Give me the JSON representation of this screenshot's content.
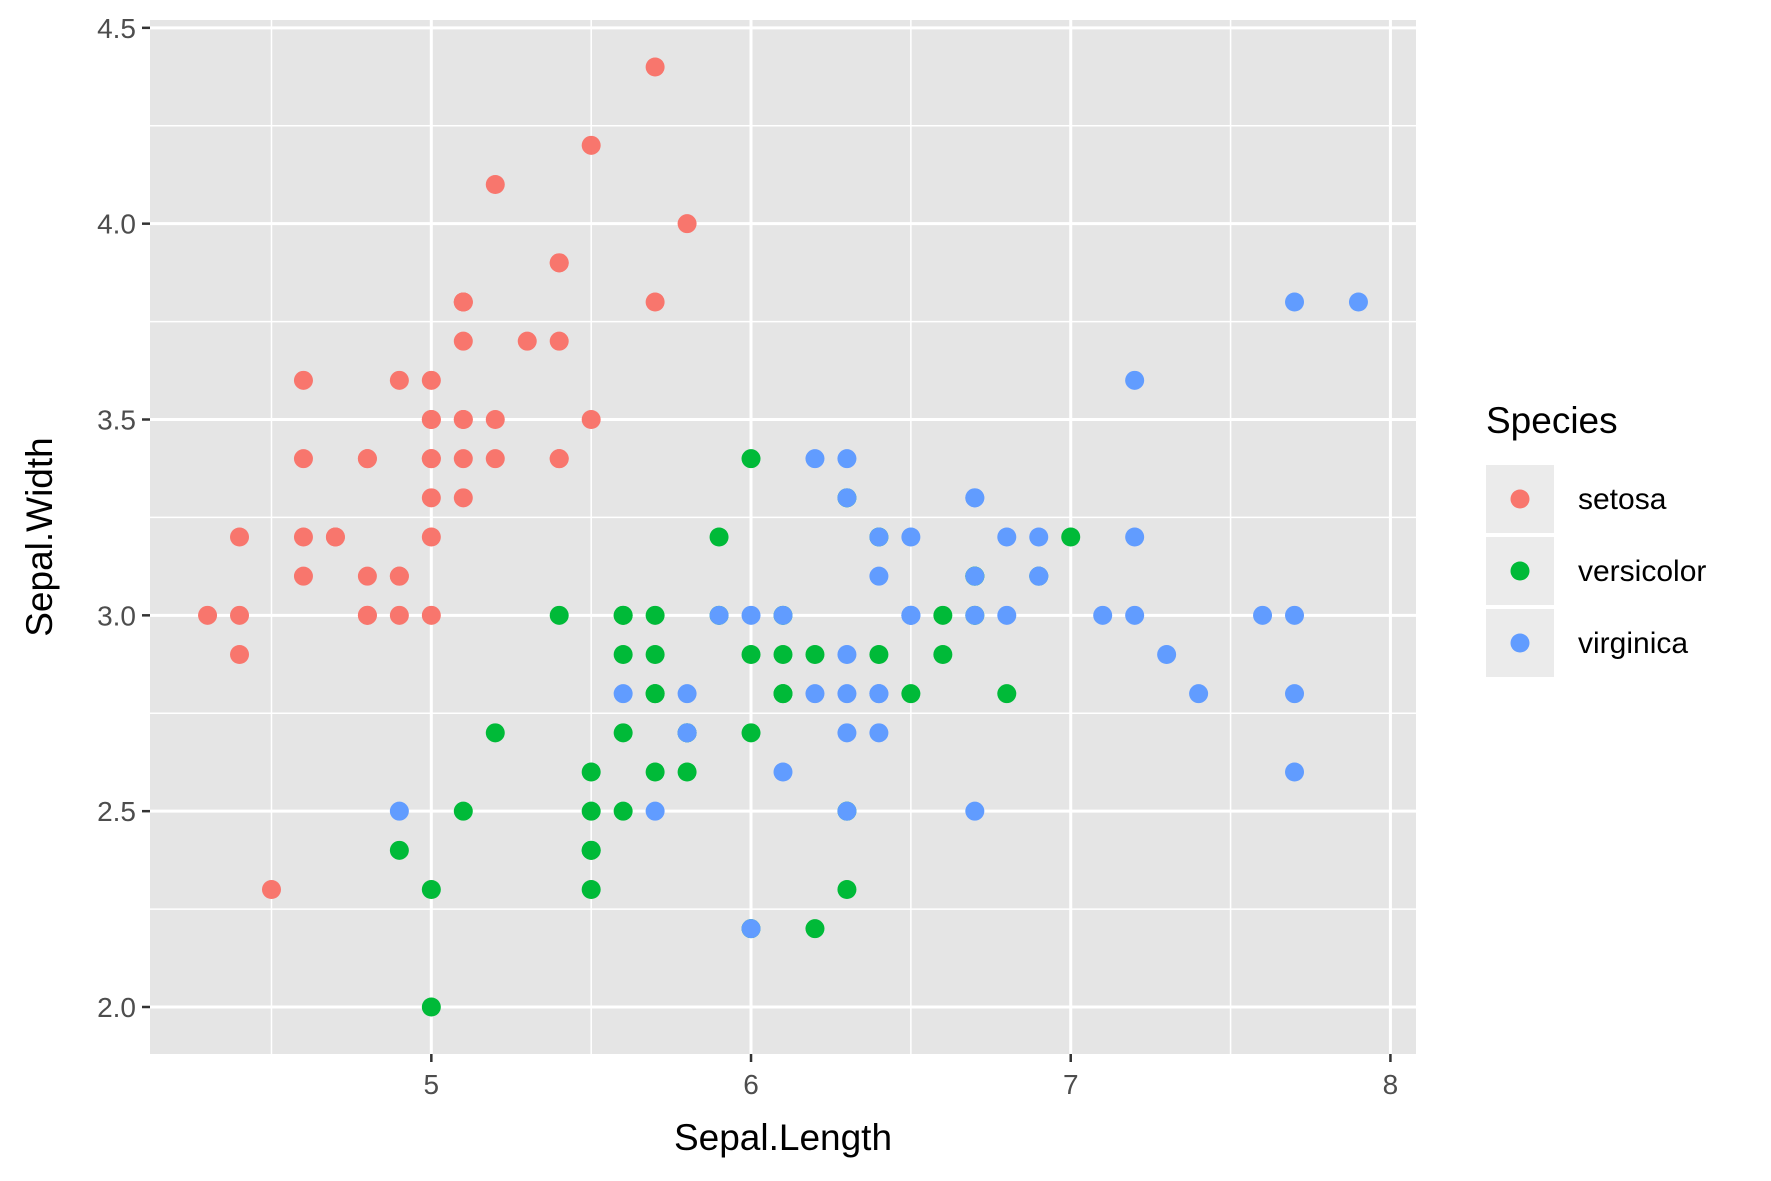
{
  "chart_data": {
    "type": "scatter",
    "xlabel": "Sepal.Length",
    "ylabel": "Sepal.Width",
    "xlim": [
      4.12,
      8.08
    ],
    "ylim": [
      1.88,
      4.52
    ],
    "x_ticks": [
      5,
      6,
      7,
      8
    ],
    "x_minor_ticks": [
      4.5,
      5.5,
      6.5,
      7.5
    ],
    "y_ticks": [
      2.0,
      2.5,
      3.0,
      3.5,
      4.0,
      4.5
    ],
    "y_minor_ticks": [
      2.25,
      2.75,
      3.25,
      3.75,
      4.25
    ],
    "x_tick_labels": [
      "5",
      "6",
      "7",
      "8"
    ],
    "y_tick_labels": [
      "2.0",
      "2.5",
      "3.0",
      "3.5",
      "4.0",
      "4.5"
    ],
    "grid": true,
    "panel_background": "#e5e5e5",
    "legend": {
      "title": "Species",
      "position": "right"
    },
    "series": [
      {
        "name": "setosa",
        "color": "#f8766d",
        "points": [
          [
            5.1,
            3.5
          ],
          [
            4.9,
            3.0
          ],
          [
            4.7,
            3.2
          ],
          [
            4.6,
            3.1
          ],
          [
            5.0,
            3.6
          ],
          [
            5.4,
            3.9
          ],
          [
            4.6,
            3.4
          ],
          [
            5.0,
            3.4
          ],
          [
            4.4,
            2.9
          ],
          [
            4.9,
            3.1
          ],
          [
            5.4,
            3.7
          ],
          [
            4.8,
            3.4
          ],
          [
            4.8,
            3.0
          ],
          [
            4.3,
            3.0
          ],
          [
            5.8,
            4.0
          ],
          [
            5.7,
            4.4
          ],
          [
            5.4,
            3.9
          ],
          [
            5.1,
            3.5
          ],
          [
            5.7,
            3.8
          ],
          [
            5.1,
            3.8
          ],
          [
            5.4,
            3.4
          ],
          [
            5.1,
            3.7
          ],
          [
            4.6,
            3.6
          ],
          [
            5.1,
            3.3
          ],
          [
            4.8,
            3.4
          ],
          [
            5.0,
            3.0
          ],
          [
            5.0,
            3.4
          ],
          [
            5.2,
            3.5
          ],
          [
            5.2,
            3.4
          ],
          [
            4.7,
            3.2
          ],
          [
            4.8,
            3.1
          ],
          [
            5.4,
            3.4
          ],
          [
            5.2,
            4.1
          ],
          [
            5.5,
            4.2
          ],
          [
            4.9,
            3.1
          ],
          [
            5.0,
            3.2
          ],
          [
            5.5,
            3.5
          ],
          [
            4.9,
            3.6
          ],
          [
            4.4,
            3.0
          ],
          [
            5.1,
            3.4
          ],
          [
            5.0,
            3.5
          ],
          [
            4.5,
            2.3
          ],
          [
            4.4,
            3.2
          ],
          [
            5.0,
            3.5
          ],
          [
            5.1,
            3.8
          ],
          [
            4.8,
            3.0
          ],
          [
            5.1,
            3.8
          ],
          [
            4.6,
            3.2
          ],
          [
            5.3,
            3.7
          ],
          [
            5.0,
            3.3
          ]
        ]
      },
      {
        "name": "versicolor",
        "color": "#00ba38",
        "points": [
          [
            7.0,
            3.2
          ],
          [
            6.4,
            3.2
          ],
          [
            6.9,
            3.1
          ],
          [
            5.5,
            2.3
          ],
          [
            6.5,
            2.8
          ],
          [
            5.7,
            2.8
          ],
          [
            6.3,
            3.3
          ],
          [
            4.9,
            2.4
          ],
          [
            6.6,
            2.9
          ],
          [
            5.2,
            2.7
          ],
          [
            5.0,
            2.0
          ],
          [
            5.9,
            3.0
          ],
          [
            6.0,
            2.2
          ],
          [
            6.1,
            2.9
          ],
          [
            5.6,
            2.9
          ],
          [
            6.7,
            3.1
          ],
          [
            5.6,
            3.0
          ],
          [
            5.8,
            2.7
          ],
          [
            6.2,
            2.2
          ],
          [
            5.6,
            2.5
          ],
          [
            5.9,
            3.2
          ],
          [
            6.1,
            2.8
          ],
          [
            6.3,
            2.5
          ],
          [
            6.1,
            2.8
          ],
          [
            6.4,
            2.9
          ],
          [
            6.6,
            3.0
          ],
          [
            6.8,
            2.8
          ],
          [
            6.7,
            3.0
          ],
          [
            6.0,
            2.9
          ],
          [
            5.7,
            2.6
          ],
          [
            5.5,
            2.4
          ],
          [
            5.5,
            2.4
          ],
          [
            5.8,
            2.7
          ],
          [
            6.0,
            2.7
          ],
          [
            5.4,
            3.0
          ],
          [
            6.0,
            3.4
          ],
          [
            6.7,
            3.1
          ],
          [
            6.3,
            2.3
          ],
          [
            5.6,
            3.0
          ],
          [
            5.5,
            2.5
          ],
          [
            5.5,
            2.6
          ],
          [
            6.1,
            3.0
          ],
          [
            5.8,
            2.6
          ],
          [
            5.0,
            2.3
          ],
          [
            5.6,
            2.7
          ],
          [
            5.7,
            3.0
          ],
          [
            5.7,
            2.9
          ],
          [
            6.2,
            2.9
          ],
          [
            5.1,
            2.5
          ],
          [
            5.7,
            2.8
          ]
        ]
      },
      {
        "name": "virginica",
        "color": "#619cff",
        "points": [
          [
            6.3,
            3.3
          ],
          [
            5.8,
            2.7
          ],
          [
            7.1,
            3.0
          ],
          [
            6.3,
            2.9
          ],
          [
            6.5,
            3.0
          ],
          [
            7.6,
            3.0
          ],
          [
            4.9,
            2.5
          ],
          [
            7.3,
            2.9
          ],
          [
            6.7,
            2.5
          ],
          [
            7.2,
            3.6
          ],
          [
            6.5,
            3.2
          ],
          [
            6.4,
            2.7
          ],
          [
            6.8,
            3.0
          ],
          [
            5.7,
            2.5
          ],
          [
            5.8,
            2.8
          ],
          [
            6.4,
            3.2
          ],
          [
            6.5,
            3.0
          ],
          [
            7.7,
            3.8
          ],
          [
            7.7,
            2.6
          ],
          [
            6.0,
            2.2
          ],
          [
            6.9,
            3.2
          ],
          [
            5.6,
            2.8
          ],
          [
            7.7,
            2.8
          ],
          [
            6.3,
            2.7
          ],
          [
            6.7,
            3.3
          ],
          [
            7.2,
            3.2
          ],
          [
            6.2,
            2.8
          ],
          [
            6.1,
            3.0
          ],
          [
            6.4,
            2.8
          ],
          [
            7.2,
            3.0
          ],
          [
            7.4,
            2.8
          ],
          [
            7.9,
            3.8
          ],
          [
            6.4,
            2.8
          ],
          [
            6.3,
            2.8
          ],
          [
            6.1,
            2.6
          ],
          [
            7.7,
            3.0
          ],
          [
            6.3,
            3.4
          ],
          [
            6.4,
            3.1
          ],
          [
            6.0,
            3.0
          ],
          [
            6.9,
            3.1
          ],
          [
            6.7,
            3.1
          ],
          [
            6.9,
            3.1
          ],
          [
            5.8,
            2.7
          ],
          [
            6.8,
            3.2
          ],
          [
            6.7,
            3.3
          ],
          [
            6.7,
            3.0
          ],
          [
            6.3,
            2.5
          ],
          [
            6.5,
            3.0
          ],
          [
            6.2,
            3.4
          ],
          [
            5.9,
            3.0
          ]
        ]
      }
    ]
  }
}
